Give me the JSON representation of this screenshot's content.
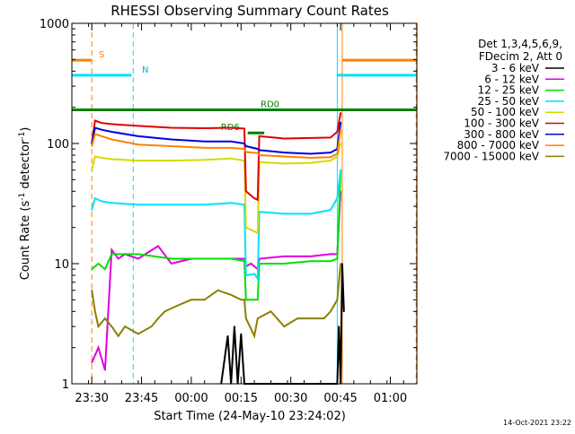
{
  "chart_data": {
    "type": "line",
    "title": "RHESSI Observing Summary Count Rates",
    "xlabel": "Start Time (24-May-10 23:24:02)",
    "ylabel_main": "Count Rate (s",
    "ylabel_sup1": "-1",
    "ylabel_mid": " detector",
    "ylabel_sup2": "-1",
    "ylabel_end": ")",
    "y_scale": "log",
    "ylim": [
      1,
      1000
    ],
    "x_units": "minutes after 23:24",
    "xlim": [
      0,
      104
    ],
    "x_ticks": [
      {
        "x": 6,
        "label": "23:30"
      },
      {
        "x": 21,
        "label": "23:45"
      },
      {
        "x": 36,
        "label": "00:00"
      },
      {
        "x": 51,
        "label": "00:15"
      },
      {
        "x": 66,
        "label": "00:30"
      },
      {
        "x": 81,
        "label": "00:45"
      },
      {
        "x": 96,
        "label": "01:00"
      }
    ],
    "y_ticks": [
      {
        "y": 1,
        "label": "1"
      },
      {
        "y": 10,
        "label": "10"
      },
      {
        "y": 100,
        "label": "100"
      },
      {
        "y": 1000,
        "label": "1000"
      }
    ],
    "legend_header": [
      "Det 1,3,4,5,6,9,",
      "FDecim 2, Att 0"
    ],
    "series": [
      {
        "name": "3 - 6 keV",
        "color": "#000000",
        "points": [
          [
            45,
            1.0
          ],
          [
            47,
            2.5
          ],
          [
            48,
            1.0
          ],
          [
            49,
            3.0
          ],
          [
            50,
            1.0
          ],
          [
            51,
            2.6
          ],
          [
            52,
            1.0
          ],
          [
            80,
            1.0
          ],
          [
            80.5,
            3.0
          ],
          [
            81,
            1.0
          ],
          [
            81.5,
            10
          ],
          [
            82,
            4.0
          ]
        ]
      },
      {
        "name": "6 - 12 keV",
        "color": "#e000e0",
        "points": [
          [
            6,
            1.5
          ],
          [
            8,
            2.0
          ],
          [
            10,
            1.3
          ],
          [
            12,
            13
          ],
          [
            14,
            11
          ],
          [
            16,
            12
          ],
          [
            20,
            11
          ],
          [
            26,
            14
          ],
          [
            30,
            10
          ],
          [
            36,
            11
          ],
          [
            42,
            11
          ],
          [
            48,
            11
          ],
          [
            52,
            11
          ],
          [
            52.5,
            9.5
          ],
          [
            54,
            10
          ],
          [
            56,
            9
          ],
          [
            56.5,
            11
          ],
          [
            64,
            11.5
          ],
          [
            72,
            11.5
          ],
          [
            78,
            12
          ],
          [
            80,
            12
          ],
          [
            81,
            40
          ]
        ]
      },
      {
        "name": "12 - 25 keV",
        "color": "#00e000",
        "points": [
          [
            6,
            9
          ],
          [
            8,
            10
          ],
          [
            10,
            9
          ],
          [
            12,
            12
          ],
          [
            20,
            12
          ],
          [
            30,
            11
          ],
          [
            40,
            11
          ],
          [
            48,
            11
          ],
          [
            52,
            10.5
          ],
          [
            52.5,
            5
          ],
          [
            56,
            5
          ],
          [
            56.5,
            10
          ],
          [
            64,
            10
          ],
          [
            72,
            10.5
          ],
          [
            78,
            10.5
          ],
          [
            80,
            11
          ],
          [
            81,
            60
          ]
        ]
      },
      {
        "name": "25 - 50 keV",
        "color": "#00e0ff",
        "points": [
          [
            6,
            28
          ],
          [
            7,
            35
          ],
          [
            9,
            33
          ],
          [
            12,
            32
          ],
          [
            20,
            31
          ],
          [
            30,
            31
          ],
          [
            40,
            31
          ],
          [
            48,
            32
          ],
          [
            52,
            31
          ],
          [
            52.5,
            8
          ],
          [
            55,
            8.2
          ],
          [
            56,
            7.5
          ],
          [
            56.5,
            27
          ],
          [
            64,
            26
          ],
          [
            72,
            26
          ],
          [
            78,
            28
          ],
          [
            80,
            35
          ],
          [
            81,
            60
          ]
        ]
      },
      {
        "name": "50 - 100 keV",
        "color": "#d8d800",
        "points": [
          [
            6,
            60
          ],
          [
            7,
            78
          ],
          [
            9,
            76
          ],
          [
            12,
            74
          ],
          [
            20,
            72
          ],
          [
            30,
            72
          ],
          [
            40,
            73
          ],
          [
            48,
            75
          ],
          [
            52,
            72
          ],
          [
            52.5,
            20
          ],
          [
            56,
            18
          ],
          [
            56.5,
            70
          ],
          [
            64,
            68
          ],
          [
            72,
            69
          ],
          [
            78,
            72
          ],
          [
            80,
            78
          ],
          [
            81,
            100
          ]
        ]
      },
      {
        "name": "100 - 300 keV",
        "color": "#e00000",
        "points": [
          [
            6,
            100
          ],
          [
            7,
            155
          ],
          [
            9,
            148
          ],
          [
            12,
            145
          ],
          [
            20,
            140
          ],
          [
            30,
            135
          ],
          [
            40,
            134
          ],
          [
            48,
            135
          ],
          [
            52,
            133
          ],
          [
            52.5,
            40
          ],
          [
            55,
            35
          ],
          [
            56,
            34
          ],
          [
            56.5,
            115
          ],
          [
            64,
            110
          ],
          [
            72,
            111
          ],
          [
            78,
            112
          ],
          [
            80,
            125
          ],
          [
            81,
            180
          ]
        ]
      },
      {
        "name": "300 - 800 keV",
        "color": "#0000e0",
        "points": [
          [
            6,
            100
          ],
          [
            7,
            135
          ],
          [
            9,
            130
          ],
          [
            12,
            125
          ],
          [
            20,
            115
          ],
          [
            30,
            108
          ],
          [
            40,
            104
          ],
          [
            48,
            104
          ],
          [
            52,
            100
          ],
          [
            52.5,
            95
          ],
          [
            56,
            90
          ],
          [
            56.5,
            88
          ],
          [
            64,
            84
          ],
          [
            72,
            82
          ],
          [
            78,
            84
          ],
          [
            80,
            90
          ],
          [
            81,
            150
          ]
        ]
      },
      {
        "name": "800 - 7000 keV",
        "color": "#ff8000",
        "points": [
          [
            6,
            95
          ],
          [
            7,
            120
          ],
          [
            9,
            115
          ],
          [
            12,
            108
          ],
          [
            20,
            98
          ],
          [
            30,
            95
          ],
          [
            40,
            92
          ],
          [
            48,
            92
          ],
          [
            52,
            90
          ],
          [
            52.5,
            85
          ],
          [
            56,
            83
          ],
          [
            56.5,
            80
          ],
          [
            64,
            78
          ],
          [
            72,
            76
          ],
          [
            78,
            77
          ],
          [
            80,
            82
          ],
          [
            81,
            130
          ]
        ]
      },
      {
        "name": "7000 - 15000 keV",
        "color": "#8b8000",
        "points": [
          [
            6,
            6
          ],
          [
            7,
            4
          ],
          [
            8,
            3
          ],
          [
            10,
            3.5
          ],
          [
            12,
            3
          ],
          [
            14,
            2.5
          ],
          [
            16,
            3
          ],
          [
            20,
            2.6
          ],
          [
            24,
            3
          ],
          [
            26,
            3.5
          ],
          [
            28,
            4
          ],
          [
            32,
            4.5
          ],
          [
            36,
            5
          ],
          [
            40,
            5
          ],
          [
            44,
            6
          ],
          [
            48,
            5.5
          ],
          [
            51,
            5
          ],
          [
            52,
            5
          ],
          [
            52.5,
            3.5
          ],
          [
            55,
            2.5
          ],
          [
            56,
            3.5
          ],
          [
            60,
            4
          ],
          [
            64,
            3
          ],
          [
            68,
            3.5
          ],
          [
            72,
            3.5
          ],
          [
            76,
            3.5
          ],
          [
            78,
            4
          ],
          [
            80,
            5
          ],
          [
            81,
            10
          ]
        ]
      }
    ],
    "flag_bars": [
      {
        "label": "S",
        "color": "#ff8000",
        "level": 0.968,
        "segments": [
          [
            0,
            6
          ],
          [
            81.5,
            104
          ]
        ]
      },
      {
        "label": "N",
        "color": "#00e0ff",
        "level": 0.955,
        "segments": [
          [
            0,
            18
          ],
          [
            80,
            104
          ]
        ]
      },
      {
        "label": "RD0",
        "color": "#008000",
        "level": 0.925,
        "segments": [
          [
            0,
            104
          ]
        ]
      },
      {
        "label": "RD6",
        "color": "#008000",
        "level": 0.905,
        "segments": [
          [
            53,
            58
          ]
        ]
      }
    ],
    "vertical_markers": [
      {
        "color": "#ff8000",
        "style": "dash",
        "x": 6
      },
      {
        "color": "#00e0ff",
        "style": "dash",
        "x": 18.5
      },
      {
        "color": "#00e0ff",
        "style": "solid",
        "x": 80
      },
      {
        "color": "#ff8000",
        "style": "solid",
        "x": 81.5
      },
      {
        "color": "#00e0ff",
        "style": "solid",
        "x": 0
      },
      {
        "color": "#ff8000",
        "style": "dash",
        "x": 103.8
      },
      {
        "color": "#00e0ff",
        "style": "dash",
        "x": 104
      }
    ],
    "grid": false,
    "legend_position": "right"
  },
  "footer_timestamp": "14-Oct-2021 23:22"
}
